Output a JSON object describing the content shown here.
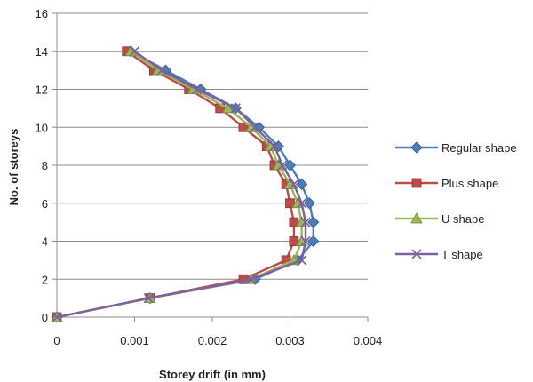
{
  "chart_data": {
    "type": "line",
    "xlabel": "Storey drift (in mm)",
    "ylabel": "No. of storeys",
    "xlim": [
      0,
      0.004
    ],
    "ylim": [
      0,
      16
    ],
    "xticks": [
      0,
      0.001,
      0.002,
      0.003,
      0.004
    ],
    "xtick_labels": [
      "0",
      "0.001",
      "0.002",
      "0.003",
      "0.004"
    ],
    "yticks": [
      0,
      2,
      4,
      6,
      8,
      10,
      12,
      14,
      16
    ],
    "ytick_labels": [
      "0",
      "2",
      "4",
      "6",
      "8",
      "10",
      "12",
      "14",
      "16"
    ],
    "grid": "horizontal",
    "legend_position": "right",
    "y": [
      0,
      1,
      2,
      3,
      4,
      5,
      6,
      7,
      8,
      9,
      10,
      11,
      12,
      13,
      14
    ],
    "series": [
      {
        "name": "Regular shape",
        "color": "#4a7ebb",
        "marker": "diamond",
        "x": [
          0,
          0.0012,
          0.00255,
          0.0031,
          0.0033,
          0.0033,
          0.00325,
          0.00315,
          0.003,
          0.00285,
          0.0026,
          0.0023,
          0.00185,
          0.0014,
          0.00095
        ]
      },
      {
        "name": "Plus shape",
        "color": "#be4b48",
        "marker": "square",
        "x": [
          0,
          0.0012,
          0.0024,
          0.00295,
          0.00305,
          0.00305,
          0.003,
          0.00295,
          0.0028,
          0.0027,
          0.0024,
          0.0021,
          0.0017,
          0.00125,
          0.0009
        ]
      },
      {
        "name": "U shape",
        "color": "#98b954",
        "marker": "triangle",
        "x": [
          0,
          0.0012,
          0.0025,
          0.00305,
          0.00315,
          0.00315,
          0.0031,
          0.003,
          0.00285,
          0.00275,
          0.0025,
          0.0022,
          0.00175,
          0.0013,
          0.00095
        ]
      },
      {
        "name": "T shape",
        "color": "#7d60a0",
        "marker": "x",
        "x": [
          0,
          0.00118,
          0.0025,
          0.00315,
          0.0032,
          0.0032,
          0.00315,
          0.00305,
          0.0029,
          0.0028,
          0.00255,
          0.0023,
          0.0018,
          0.00135,
          0.001
        ]
      }
    ]
  }
}
